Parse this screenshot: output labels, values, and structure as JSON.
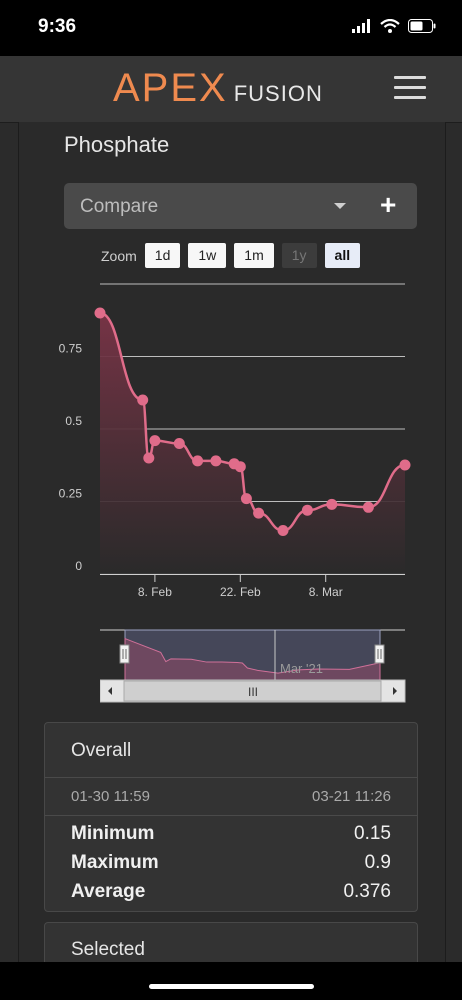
{
  "status_bar": {
    "time": "9:36"
  },
  "header": {
    "logo_main": "APEX",
    "logo_sub": "FUSION"
  },
  "page_title": "Phosphate",
  "compare": {
    "label": "Compare"
  },
  "zoom": {
    "label": "Zoom",
    "buttons": [
      {
        "label": "1d",
        "state": "normal"
      },
      {
        "label": "1w",
        "state": "normal"
      },
      {
        "label": "1m",
        "state": "normal"
      },
      {
        "label": "1y",
        "state": "disabled"
      },
      {
        "label": "all",
        "state": "active"
      }
    ]
  },
  "chart_data": {
    "type": "area",
    "x": [
      "01-30",
      "02-06",
      "02-07",
      "02-08",
      "02-12",
      "02-15",
      "02-18",
      "02-21",
      "02-22",
      "02-23",
      "02-25",
      "03-01",
      "03-05",
      "03-09",
      "03-15",
      "03-21"
    ],
    "values": [
      0.9,
      0.6,
      0.4,
      0.46,
      0.45,
      0.39,
      0.39,
      0.38,
      0.37,
      0.26,
      0.21,
      0.15,
      0.22,
      0.24,
      0.23,
      0.376
    ],
    "yticks": [
      "0",
      "0.25",
      "0.5",
      "0.75"
    ],
    "ylim": [
      0,
      1.0
    ],
    "xticks": [
      "8. Feb",
      "22. Feb",
      "8. Mar"
    ],
    "navigator_label": "Mar '21",
    "grid": true,
    "colors": {
      "line": "#e06c8a",
      "point": "#e06c8a",
      "fill_top": "#7a3447",
      "fill_bottom": "#2a2a2a"
    }
  },
  "stats": {
    "title": "Overall",
    "range_start": "01-30 11:59",
    "range_end": "03-21 11:26",
    "rows": [
      {
        "label": "Minimum",
        "value": "0.15"
      },
      {
        "label": "Maximum",
        "value": "0.9"
      },
      {
        "label": "Average",
        "value": "0.376"
      }
    ]
  },
  "selected": {
    "title": "Selected"
  },
  "navigator": {
    "scroll_label": "III"
  }
}
